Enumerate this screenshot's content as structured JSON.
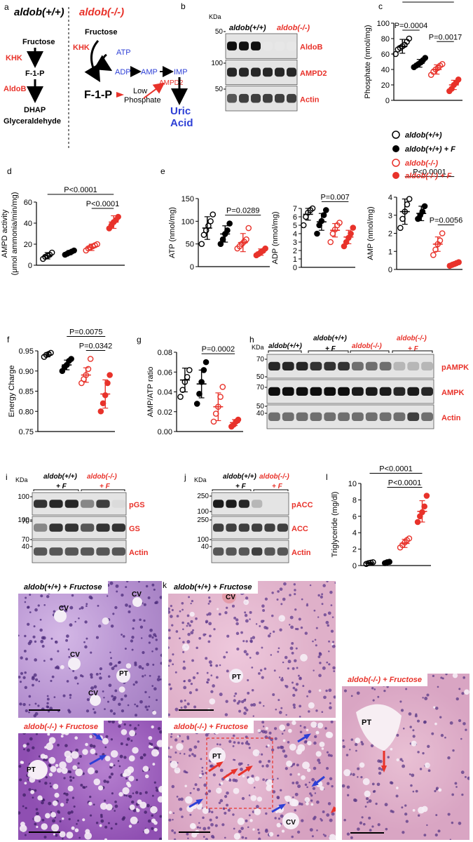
{
  "panel_letters": {
    "a": "a",
    "b": "b",
    "c": "c",
    "d": "d",
    "e": "e",
    "f": "f",
    "g": "g",
    "h": "h",
    "i": "i",
    "j": "j",
    "k": "k",
    "l": "l"
  },
  "colors": {
    "wt": "#000000",
    "ko": "#e8322a",
    "blue": "#2d3fd6",
    "he_light": "#e6b8d2",
    "he_dark": "#c58bb1",
    "pas_light": "#c9a9dd",
    "pas_dark": "#9c5fbd"
  },
  "group_labels": {
    "wt": "aldob(+/+)",
    "ko": "aldob(-/-)",
    "plus_f": "+ F"
  },
  "legend": [
    {
      "label": "aldob(+/+)",
      "style": "open-black"
    },
    {
      "label": "aldob(+/+) + F",
      "style": "filled-black"
    },
    {
      "label": "aldob(-/-)",
      "style": "open-red"
    },
    {
      "label": "aldob(-/-) + F",
      "style": "filled-red"
    }
  ],
  "pathway": {
    "wt_title": "aldob(+/+)",
    "ko_title": "aldob(-/-)",
    "fructose": "Fructose",
    "khk": "KHK",
    "f1p": "F-1-P",
    "aldob": "AldoB",
    "dhap": "DHAP",
    "glyceraldehyde": "Glyceraldehyde",
    "atp": "ATP",
    "adp": "ADP",
    "amp": "AMP",
    "imp": "IMP",
    "ampd2": "AMPD2",
    "low": "Low",
    "phosphate": "Phosphate",
    "uric": "Uric",
    "acid": "Acid"
  },
  "blot_b": {
    "kda": "KDa",
    "markers": [
      "50",
      "100",
      "50"
    ],
    "bands": [
      "AldoB",
      "AMPD2",
      "Actin"
    ]
  },
  "blot_h": {
    "kda": "KDa",
    "markers": [
      "70",
      "50",
      "70",
      "50",
      "40"
    ],
    "bands": [
      "pAMPK",
      "AMPK",
      "Actin"
    ]
  },
  "blot_i": {
    "kda": "KDa",
    "markers": [
      "100",
      "70",
      "100",
      "70",
      "40"
    ],
    "bands": [
      "pGS",
      "GS",
      "Actin"
    ]
  },
  "blot_j": {
    "kda": "KDa",
    "markers": [
      "250",
      "100",
      "250",
      "100",
      "40"
    ],
    "bands": [
      "pACC",
      "ACC",
      "Actin"
    ]
  },
  "histology": {
    "pas_wt": "aldob(+/+) + Fructose",
    "pas_ko": "aldob(-/-) + Fructose",
    "he_wt": "aldob(+/+) + Fructose",
    "he_ko": "aldob(-/-) + Fructose",
    "he_zoom": "aldob(-/-) + Fructose",
    "cv": "CV",
    "pt": "PT"
  },
  "chart_data": [
    {
      "id": "c",
      "type": "scatter",
      "ylabel": "Phosphate (nmol/mg)",
      "ylim": [
        0,
        100
      ],
      "ticks": [
        "0",
        "20",
        "40",
        "60",
        "80",
        "100"
      ],
      "series": [
        {
          "name": "aldob(+/+)",
          "mean": 70,
          "sd": 9,
          "values": [
            60,
            66,
            68,
            70,
            72,
            76,
            80
          ]
        },
        {
          "name": "aldob(+/+) + F",
          "mean": 48,
          "sd": 5,
          "values": [
            43,
            45,
            47,
            49,
            52,
            55
          ]
        },
        {
          "name": "aldob(-/-)",
          "mean": 40,
          "sd": 6,
          "values": [
            33,
            37,
            40,
            42,
            45,
            47
          ]
        },
        {
          "name": "aldob(-/-) + F",
          "mean": 20,
          "sd": 6,
          "values": [
            12,
            15,
            20,
            23,
            27
          ]
        }
      ],
      "comparisons": [
        {
          "a": 0,
          "b": 1,
          "label": "P=0.0004"
        },
        {
          "a": 0,
          "b": 3,
          "label": "P<0.0001"
        },
        {
          "a": 2,
          "b": 3,
          "label": "P=0.0017"
        }
      ]
    },
    {
      "id": "d",
      "type": "scatter",
      "ylabel": "AMPD activity",
      "ylabel2": "(μmol ammonia/min/mg)",
      "ylim": [
        0,
        60
      ],
      "ticks": [
        "0",
        "20",
        "40",
        "60"
      ],
      "series": [
        {
          "name": "aldob(+/+)",
          "mean": 9,
          "sd": 3,
          "values": [
            6,
            8,
            9,
            10,
            12
          ]
        },
        {
          "name": "aldob(+/+) + F",
          "mean": 12,
          "sd": 2,
          "values": [
            10,
            11,
            12,
            13,
            14
          ]
        },
        {
          "name": "aldob(-/-)",
          "mean": 17,
          "sd": 3,
          "values": [
            14,
            16,
            17,
            18,
            19,
            20
          ]
        },
        {
          "name": "aldob(-/-) + F",
          "mean": 41,
          "sd": 6,
          "values": [
            35,
            38,
            41,
            43,
            46
          ]
        }
      ],
      "comparisons": [
        {
          "a": 0,
          "b": 3,
          "label": "P<0.0001"
        },
        {
          "a": 2,
          "b": 3,
          "label": "P<0.0001"
        }
      ]
    },
    {
      "id": "e1",
      "type": "scatter",
      "ylabel": "ATP (nmol/mg)",
      "ylim": [
        0,
        150
      ],
      "ticks": [
        "0",
        "50",
        "100",
        "150"
      ],
      "series": [
        {
          "name": "aldob(+/+)",
          "mean": 85,
          "sd": 25,
          "values": [
            50,
            70,
            80,
            90,
            100,
            115
          ]
        },
        {
          "name": "aldob(+/+) + F",
          "mean": 72,
          "sd": 18,
          "values": [
            50,
            60,
            72,
            80,
            95
          ]
        },
        {
          "name": "aldob(-/-)",
          "mean": 53,
          "sd": 20,
          "values": [
            40,
            45,
            50,
            55,
            60,
            85
          ]
        },
        {
          "name": "aldob(-/-) + F",
          "mean": 32,
          "sd": 7,
          "values": [
            25,
            28,
            32,
            35,
            40
          ]
        }
      ],
      "comparisons": [
        {
          "a": 1,
          "b": 3,
          "label": "P=0.0289"
        }
      ]
    },
    {
      "id": "e2",
      "type": "scatter",
      "ylabel": "ADP (nmol/mg)",
      "ylim": [
        0,
        7
      ],
      "ticks": [
        "0",
        "1",
        "2",
        "3",
        "4",
        "5",
        "6",
        "7"
      ],
      "series": [
        {
          "name": "aldob(+/+)",
          "mean": 6.3,
          "sd": 0.7,
          "values": [
            5,
            6,
            6.5,
            6.8,
            7
          ]
        },
        {
          "name": "aldob(+/+) + F",
          "mean": 5.4,
          "sd": 1,
          "values": [
            4,
            5,
            5.5,
            6.2,
            6.8
          ]
        },
        {
          "name": "aldob(-/-)",
          "mean": 4.4,
          "sd": 0.8,
          "values": [
            3,
            4,
            4.5,
            5,
            5.3
          ]
        },
        {
          "name": "aldob(-/-) + F",
          "mean": 3.6,
          "sd": 0.8,
          "values": [
            2.5,
            3,
            3.5,
            4,
            4.7
          ]
        }
      ],
      "comparisons": [
        {
          "a": 1,
          "b": 3,
          "label": "P=0.007"
        }
      ]
    },
    {
      "id": "e3",
      "type": "scatter",
      "ylabel": "AMP (nmol/mg)",
      "ylim": [
        0,
        4
      ],
      "ticks": [
        "0",
        "1",
        "2",
        "3",
        "4"
      ],
      "series": [
        {
          "name": "aldob(+/+)",
          "mean": 3.2,
          "sd": 0.7,
          "values": [
            2.3,
            2.8,
            3.2,
            3.6,
            3.9
          ]
        },
        {
          "name": "aldob(+/+) + F",
          "mean": 3.1,
          "sd": 0.4,
          "values": [
            2.8,
            3,
            3.2,
            3.5
          ]
        },
        {
          "name": "aldob(-/-)",
          "mean": 1.4,
          "sd": 0.4,
          "values": [
            0.8,
            1.1,
            1.4,
            1.6,
            2
          ]
        },
        {
          "name": "aldob(-/-) + F",
          "mean": 0.3,
          "sd": 0.1,
          "values": [
            0.2,
            0.25,
            0.3,
            0.35,
            0.4
          ]
        }
      ],
      "comparisons": [
        {
          "a": 0,
          "b": 3,
          "label": "P<0.0001"
        },
        {
          "a": 2,
          "b": 3,
          "label": "P=0.0056"
        }
      ]
    },
    {
      "id": "f",
      "type": "scatter",
      "ylabel": "Energy Charge",
      "ylim": [
        0.75,
        0.95
      ],
      "ticks": [
        "0.75",
        "0.80",
        "0.85",
        "0.90",
        "0.95"
      ],
      "series": [
        {
          "name": "aldob(+/+)",
          "mean": 0.94,
          "sd": 0.005,
          "values": [
            0.935,
            0.94,
            0.942,
            0.945
          ]
        },
        {
          "name": "aldob(+/+) + F",
          "mean": 0.915,
          "sd": 0.012,
          "values": [
            0.9,
            0.91,
            0.915,
            0.925,
            0.93
          ]
        },
        {
          "name": "aldob(-/-)",
          "mean": 0.89,
          "sd": 0.018,
          "values": [
            0.87,
            0.88,
            0.89,
            0.905,
            0.93
          ]
        },
        {
          "name": "aldob(-/-) + F",
          "mean": 0.843,
          "sd": 0.035,
          "values": [
            0.8,
            0.82,
            0.84,
            0.87,
            0.89
          ]
        }
      ],
      "comparisons": [
        {
          "a": 1,
          "b": 3,
          "label": "P=0.0075"
        },
        {
          "a": 2,
          "b": 3,
          "label": "P=0.0342"
        }
      ]
    },
    {
      "id": "g",
      "type": "scatter",
      "ylabel": "AMP/ATP ratio",
      "ylim": [
        0,
        0.08
      ],
      "ticks": [
        "0.00",
        "0.02",
        "0.04",
        "0.06",
        "0.08"
      ],
      "series": [
        {
          "name": "aldob(+/+)",
          "mean": 0.052,
          "sd": 0.012,
          "values": [
            0.035,
            0.042,
            0.05,
            0.055,
            0.062
          ]
        },
        {
          "name": "aldob(+/+) + F",
          "mean": 0.048,
          "sd": 0.014,
          "values": [
            0.028,
            0.038,
            0.05,
            0.062,
            0.07
          ]
        },
        {
          "name": "aldob(-/-)",
          "mean": 0.025,
          "sd": 0.014,
          "values": [
            0.01,
            0.018,
            0.025,
            0.035,
            0.045
          ]
        },
        {
          "name": "aldob(-/-) + F",
          "mean": 0.009,
          "sd": 0.003,
          "values": [
            0.005,
            0.007,
            0.01,
            0.012
          ]
        }
      ],
      "comparisons": [
        {
          "a": 1,
          "b": 3,
          "label": "P=0.0002"
        }
      ]
    },
    {
      "id": "l",
      "type": "scatter",
      "ylabel": "Triglyceride (mg/dl)",
      "ylim": [
        0,
        10
      ],
      "ticks": [
        "0",
        "2",
        "4",
        "6",
        "8",
        "10"
      ],
      "series": [
        {
          "name": "aldob(+/+)",
          "mean": 0.3,
          "sd": 0.1,
          "values": [
            0.2,
            0.3,
            0.35,
            0.4
          ]
        },
        {
          "name": "aldob(+/+) + F",
          "mean": 0.4,
          "sd": 0.1,
          "values": [
            0.3,
            0.4,
            0.45
          ]
        },
        {
          "name": "aldob(-/-)",
          "mean": 2.7,
          "sd": 0.5,
          "values": [
            2.2,
            2.5,
            2.8,
            3.1,
            3.3
          ]
        },
        {
          "name": "aldob(-/-) + F",
          "mean": 6.6,
          "sd": 1.3,
          "values": [
            5.3,
            6,
            6.5,
            7.2,
            8.5
          ]
        }
      ],
      "comparisons": [
        {
          "a": 0,
          "b": 3,
          "label": "P<0.0001"
        },
        {
          "a": 1,
          "b": 3,
          "label": "P<0.0001"
        }
      ]
    }
  ]
}
